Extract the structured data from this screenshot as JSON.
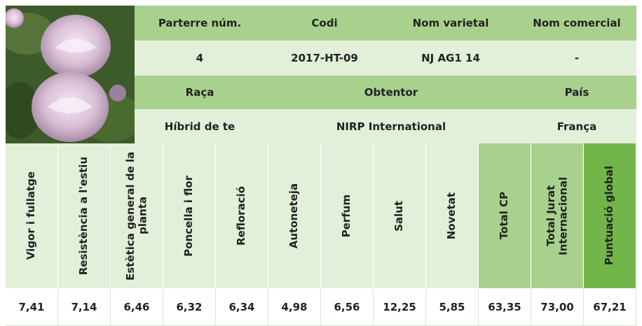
{
  "header": {
    "columns": [
      "Parterre núm.",
      "Codi",
      "Nom varietal",
      "Nom comercial"
    ],
    "values": [
      "4",
      "2017-HT-09",
      "NJ AG1 14",
      "-"
    ]
  },
  "origin": {
    "columns": [
      "Raça",
      "Obtentor",
      "País"
    ],
    "values": [
      "Híbrid de te",
      "NIRP International",
      "França"
    ]
  },
  "scores": {
    "columns": [
      "Vigor i fullatge",
      "Resistència a l'estiu",
      "Estètica general de la planta",
      "Poncella i flor",
      "Refloració",
      "Autoneteja",
      "Perfum",
      "Salut",
      "Novetat",
      "Total CP",
      "Total Jurat Internacional",
      "Puntuació global"
    ],
    "values": [
      "7,41",
      "7,14",
      "6,46",
      "6,32",
      "6,34",
      "4,98",
      "6,56",
      "12,25",
      "5,85",
      "63,35",
      "73,00",
      "67,21"
    ]
  }
}
